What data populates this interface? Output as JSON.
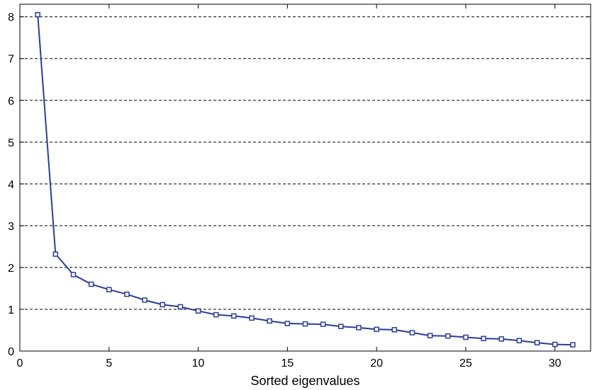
{
  "chart_data": {
    "type": "line",
    "title": "",
    "xlabel": "Sorted eigenvalues",
    "ylabel": "",
    "xlim": [
      0,
      32
    ],
    "ylim": [
      0,
      8.3
    ],
    "xticks": [
      0,
      5,
      10,
      15,
      20,
      25,
      30
    ],
    "yticks": [
      0,
      1,
      2,
      3,
      4,
      5,
      6,
      7,
      8
    ],
    "grid": "horizontal dashed",
    "line_color": "#2b3d9a",
    "marker": "square",
    "series": [
      {
        "x": [
          1,
          2,
          3,
          4,
          5,
          6,
          7,
          8,
          9,
          10,
          11,
          12,
          13,
          14,
          15,
          16,
          17,
          18,
          19,
          20,
          21,
          22,
          23,
          24,
          25,
          26,
          27,
          28,
          29,
          30,
          31
        ],
        "values": [
          8.05,
          2.32,
          1.83,
          1.6,
          1.47,
          1.36,
          1.22,
          1.11,
          1.06,
          0.96,
          0.87,
          0.84,
          0.79,
          0.72,
          0.66,
          0.65,
          0.64,
          0.59,
          0.56,
          0.52,
          0.51,
          0.44,
          0.37,
          0.36,
          0.33,
          0.3,
          0.29,
          0.25,
          0.2,
          0.16,
          0.15
        ]
      }
    ]
  }
}
